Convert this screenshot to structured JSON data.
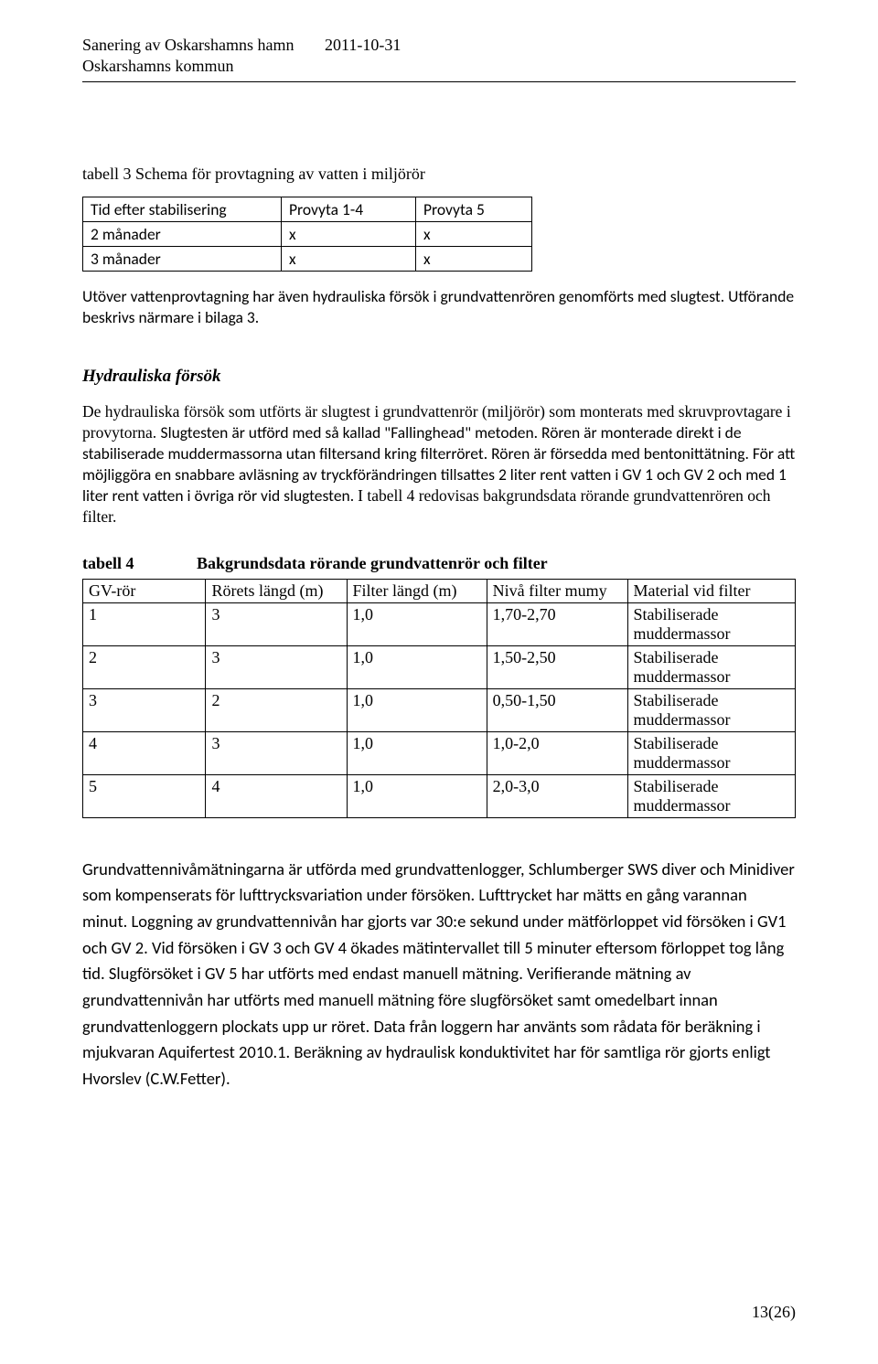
{
  "header": {
    "title1": "Sanering av Oskarshamns hamn",
    "title2": "Oskarshamns kommun",
    "date": "2011-10-31"
  },
  "table3": {
    "caption": "tabell 3 Schema för provtagning av vatten i miljörör",
    "headers": [
      "Tid efter stabilisering",
      "Provyta 1-4",
      "Provyta 5"
    ],
    "rows": [
      [
        "2 månader",
        "x",
        "x"
      ],
      [
        "3 månader",
        "x",
        "x"
      ]
    ]
  },
  "para1": "Utöver vattenprovtagning har även hydrauliska försök i grundvattenrören genomförts med slugtest. Utförande beskrivs närmare i bilaga 3.",
  "h3": "Hydrauliska försök",
  "para2_start_serif": "De hydrauliska försök som utförts är slugtest i grundvattenrör (miljörör) som monterats med skruvprovtagare i provytorna. ",
  "para2_mid_sans": "Slugtesten är utförd med så kallad \"Fallinghead\" metoden. Rören är monterade direkt i de stabiliserade muddermassorna utan filtersand kring filterröret. Rören är försedda med bentonittätning. För att möjliggöra en snabbare avläsning av tryckförändringen tillsattes 2 liter rent vatten i GV 1 och GV 2 och med 1 liter rent vatten i övriga rör vid slugtesten. ",
  "para2_end_serif": "I tabell 4 redovisas bakgrundsdata rörande grundvattenrören och filter.",
  "table4": {
    "label": "tabell 4",
    "title": "Bakgrundsdata rörande grundvattenrör och filter",
    "headers": [
      "GV-rör",
      "Rörets längd (m)",
      "Filter längd (m)",
      "Nivå filter mumy",
      "Material vid filter"
    ],
    "rows": [
      [
        "1",
        "3",
        "1,0",
        "1,70-2,70",
        "Stabiliserade muddermassor"
      ],
      [
        "2",
        "3",
        "1,0",
        "1,50-2,50",
        "Stabiliserade muddermassor"
      ],
      [
        "3",
        "2",
        "1,0",
        "0,50-1,50",
        "Stabiliserade muddermassor"
      ],
      [
        "4",
        "3",
        "1,0",
        "1,0-2,0",
        "Stabiliserade muddermassor"
      ],
      [
        "5",
        "4",
        "1,0",
        "2,0-3,0",
        "Stabiliserade muddermassor"
      ]
    ]
  },
  "para3": "Grundvattennivåmätningarna är utförda med grundvattenlogger, Schlumberger SWS diver och Minidiver som kompenserats för lufttrycksvariation under försöken. Lufttrycket har mätts en gång varannan minut. Loggning av grundvattennivån har gjorts var 30:e sekund under mätförloppet vid försöken i GV1 och GV 2. Vid försöken i GV 3 och GV 4 ökades mätintervallet till 5 minuter eftersom förloppet tog lång tid. Slugförsöket i GV 5 har utförts med endast manuell mätning. Verifierande mätning av grundvattennivån har utförts med manuell mätning före slugförsöket samt omedelbart innan grundvattenloggern plockats upp ur röret. Data från loggern har använts som rådata för beräkning i mjukvaran Aquifertest 2010.1. Beräkning av hydraulisk konduktivitet har för samtliga rör gjorts enligt Hvorslev (C.W.Fetter).",
  "footer": "13(26)"
}
